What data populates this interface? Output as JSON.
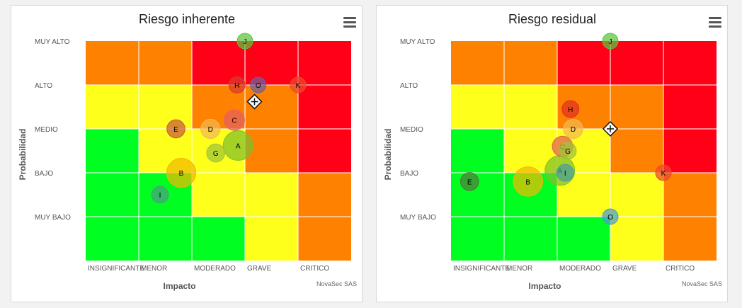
{
  "chart_data": [
    {
      "type": "heatmap",
      "title": "Riesgo inherente",
      "xlabel": "Impacto",
      "ylabel": "Probabilidad",
      "x_categories": [
        "INSIGNIFICANTE",
        "MENOR",
        "MODERADO",
        "GRAVE",
        "CRITICO"
      ],
      "y_categories": [
        "MUY BAJO",
        "BAJO",
        "MEDIO",
        "ALTO",
        "MUY ALTO"
      ],
      "credit": "NovaSec SAS",
      "colors": {
        "green": "#00ff21",
        "yellow": "#ffff1c",
        "orange": "#ff8100",
        "red": "#ff0017"
      },
      "cells": [
        [
          "green",
          "green",
          "green",
          "yellow",
          "orange"
        ],
        [
          "green",
          "green",
          "yellow",
          "yellow",
          "orange"
        ],
        [
          "green",
          "yellow",
          "yellow",
          "orange",
          "red"
        ],
        [
          "yellow",
          "yellow",
          "orange",
          "orange",
          "red"
        ],
        [
          "orange",
          "orange",
          "red",
          "red",
          "red"
        ]
      ],
      "marker": {
        "x": 3.18,
        "y": 3.62
      },
      "points": [
        {
          "label": "J",
          "x": 3.0,
          "y": 5.0,
          "size": 1.0,
          "color": "#5cc23a"
        },
        {
          "label": "H",
          "x": 2.85,
          "y": 4.0,
          "size": 1.1,
          "color": "#d83a2a"
        },
        {
          "label": "O",
          "x": 3.25,
          "y": 4.0,
          "size": 1.0,
          "color": "#6c5fa0"
        },
        {
          "label": "K",
          "x": 4.0,
          "y": 4.0,
          "size": 1.0,
          "color": "#ea4a2c"
        },
        {
          "label": "C",
          "x": 2.8,
          "y": 3.2,
          "size": 1.8,
          "color": "#e56060"
        },
        {
          "label": "D",
          "x": 2.35,
          "y": 3.0,
          "size": 1.6,
          "color": "#f2b850"
        },
        {
          "label": "E",
          "x": 1.7,
          "y": 3.0,
          "size": 1.4,
          "color": "#c85a3a"
        },
        {
          "label": "A",
          "x": 2.87,
          "y": 2.62,
          "size": 4.0,
          "color": "#7fbf2a"
        },
        {
          "label": "G",
          "x": 2.45,
          "y": 2.45,
          "size": 1.4,
          "color": "#9cc43a"
        },
        {
          "label": "B",
          "x": 1.8,
          "y": 2.0,
          "size": 3.8,
          "color": "#f0b800"
        },
        {
          "label": "I",
          "x": 1.4,
          "y": 1.5,
          "size": 1.2,
          "color": "#4a9e80"
        }
      ]
    },
    {
      "type": "heatmap",
      "title": "Riesgo residual",
      "xlabel": "Impacto",
      "ylabel": "Probabilidad",
      "x_categories": [
        "INSIGNIFICANTE",
        "MENOR",
        "MODERADO",
        "GRAVE",
        "CRITICO"
      ],
      "y_categories": [
        "MUY BAJO",
        "BAJO",
        "MEDIO",
        "ALTO",
        "MUY ALTO"
      ],
      "credit": "NovaSec SAS",
      "colors": {
        "green": "#00ff21",
        "yellow": "#ffff1c",
        "orange": "#ff8100",
        "red": "#ff0017"
      },
      "cells": [
        [
          "green",
          "green",
          "green",
          "yellow",
          "orange"
        ],
        [
          "green",
          "green",
          "yellow",
          "yellow",
          "orange"
        ],
        [
          "green",
          "yellow",
          "yellow",
          "orange",
          "red"
        ],
        [
          "yellow",
          "yellow",
          "orange",
          "orange",
          "red"
        ],
        [
          "orange",
          "orange",
          "red",
          "red",
          "red"
        ]
      ],
      "marker": {
        "x": 3.0,
        "y": 3.0
      },
      "points": [
        {
          "label": "J",
          "x": 3.0,
          "y": 5.0,
          "size": 1.0,
          "color": "#5cc23a"
        },
        {
          "label": "H",
          "x": 2.25,
          "y": 3.45,
          "size": 1.2,
          "color": "#e03020"
        },
        {
          "label": "D",
          "x": 2.3,
          "y": 3.0,
          "size": 1.6,
          "color": "#f2b850"
        },
        {
          "label": "C",
          "x": 2.1,
          "y": 2.6,
          "size": 1.8,
          "color": "#e06050"
        },
        {
          "label": "G",
          "x": 2.2,
          "y": 2.5,
          "size": 1.2,
          "color": "#9cc43a"
        },
        {
          "label": "A",
          "x": 2.05,
          "y": 2.05,
          "size": 4.0,
          "color": "#7fbf2a"
        },
        {
          "label": "I",
          "x": 2.15,
          "y": 2.0,
          "size": 1.2,
          "color": "#4a9e9e"
        },
        {
          "label": "B",
          "x": 1.45,
          "y": 1.8,
          "size": 3.9,
          "color": "#f0b800"
        },
        {
          "label": "E",
          "x": 0.35,
          "y": 1.8,
          "size": 1.4,
          "color": "#507a3c"
        },
        {
          "label": "K",
          "x": 4.0,
          "y": 2.0,
          "size": 1.0,
          "color": "#ea4a2c"
        },
        {
          "label": "O",
          "x": 3.0,
          "y": 1.0,
          "size": 1.0,
          "color": "#4a9ecc"
        }
      ]
    }
  ]
}
